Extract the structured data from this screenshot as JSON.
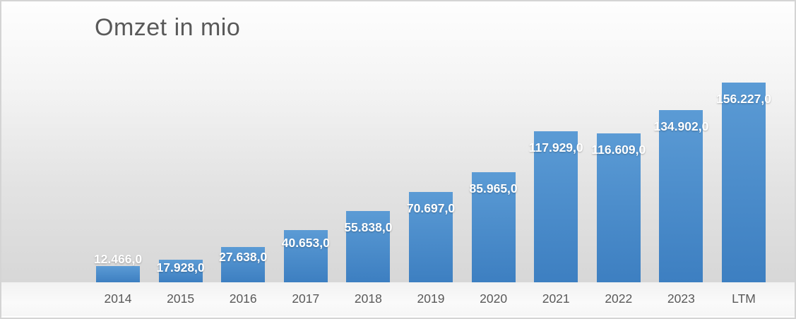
{
  "chart_data": {
    "type": "bar",
    "title": "Omzet in mio",
    "categories": [
      "2014",
      "2015",
      "2016",
      "2017",
      "2018",
      "2019",
      "2020",
      "2021",
      "2022",
      "2023",
      "LTM"
    ],
    "values": [
      12466.0,
      17928.0,
      27638.0,
      40653.0,
      55838.0,
      70697.0,
      85965.0,
      117929.0,
      116609.0,
      134902.0,
      156227.0
    ],
    "value_labels": [
      "12.466,0",
      "17.928,0",
      "27.638,0",
      "40.653,0",
      "55.838,0",
      "70.697,0",
      "85.965,0",
      "117.929,0",
      "116.609,0",
      "134.902,0",
      "156.227,0"
    ],
    "xlabel": "",
    "ylabel": "",
    "ylim": [
      0,
      165000
    ],
    "grid": false,
    "legend": false,
    "data_labels": "on-bar-top"
  },
  "colors": {
    "bar_top": "#5b9bd5",
    "bar_bottom": "#3d7fc1",
    "title_text": "#595959",
    "data_label_text": "#ffffff",
    "axis_label_text": "#595959",
    "background_top": "#fefefe",
    "background_bottom": "#d7d7d7",
    "footer_background": "#f7f7f7",
    "frame_border": "#d4d4d4"
  }
}
